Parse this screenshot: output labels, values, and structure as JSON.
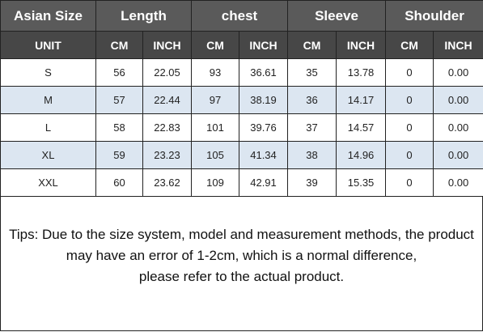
{
  "header": {
    "columns": [
      "Asian Size",
      "Length",
      "chest",
      "Sleeve",
      "Shoulder"
    ],
    "units": [
      "UNIT",
      "CM",
      "INCH",
      "CM",
      "INCH",
      "CM",
      "INCH",
      "CM",
      "INCH"
    ]
  },
  "table": {
    "rows": [
      [
        "S",
        "56",
        "22.05",
        "93",
        "36.61",
        "35",
        "13.78",
        "0",
        "0.00"
      ],
      [
        "M",
        "57",
        "22.44",
        "97",
        "38.19",
        "36",
        "14.17",
        "0",
        "0.00"
      ],
      [
        "L",
        "58",
        "22.83",
        "101",
        "39.76",
        "37",
        "14.57",
        "0",
        "0.00"
      ],
      [
        "XL",
        "59",
        "23.23",
        "105",
        "41.34",
        "38",
        "14.96",
        "0",
        "0.00"
      ],
      [
        "XXL",
        "60",
        "23.62",
        "109",
        "42.91",
        "39",
        "15.35",
        "0",
        "0.00"
      ]
    ]
  },
  "tips": [
    "Tips: Due to the size system, model and measurement methods, the product",
    "may have an error of 1-2cm, which is a normal difference,",
    "please refer to the actual product."
  ]
}
